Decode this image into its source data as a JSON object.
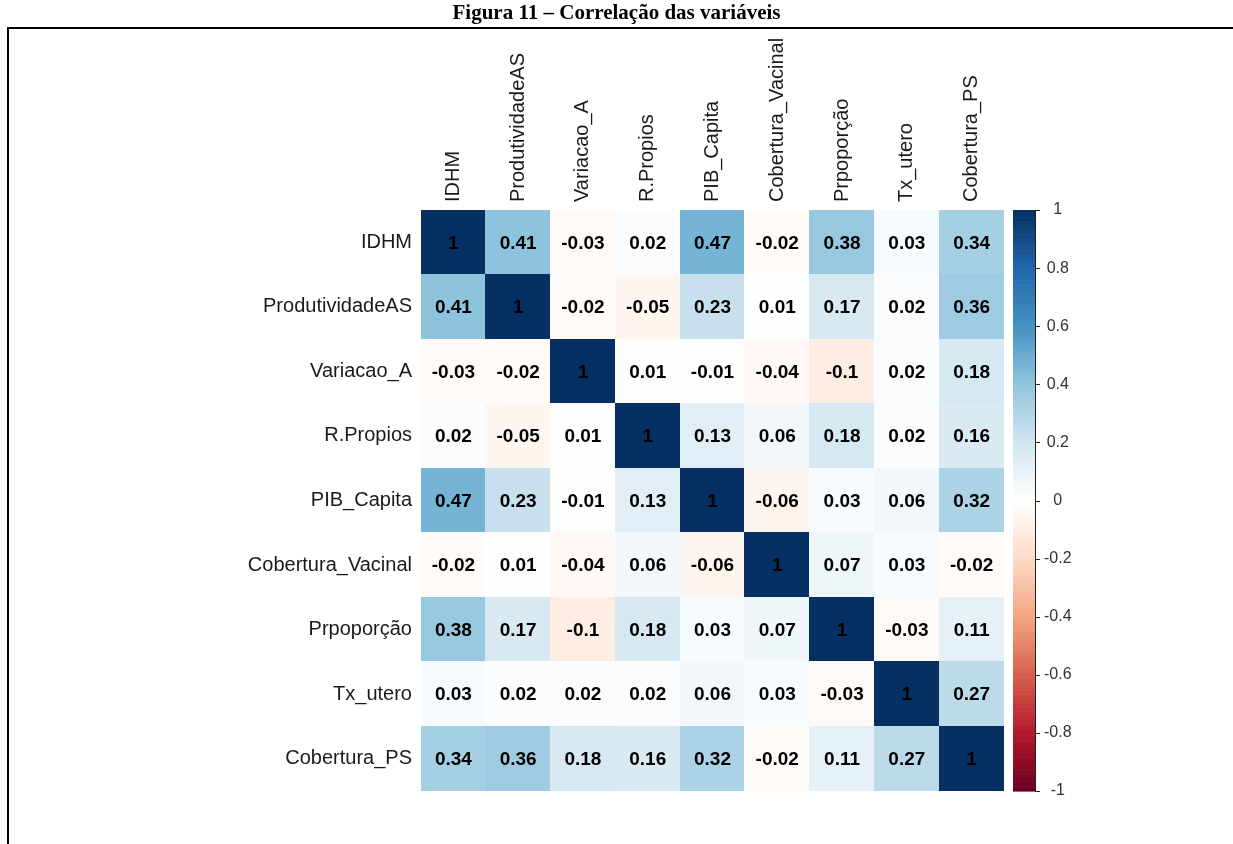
{
  "chart_data": {
    "type": "heatmap",
    "title": "Figura 11 – Correlação das variáveis",
    "categories": [
      "IDHM",
      "ProdutividadeAS",
      "Variacao_A",
      "R.Propios",
      "PIB_Capita",
      "Cobertura_Vacinal",
      "Prpoporção",
      "Tx_utero",
      "Cobertura_PS"
    ],
    "y_categories": [
      "IDHM",
      "ProdutividadeAS",
      "Variacao_A",
      "R.Propios",
      "PIB_Capita",
      "Cobertura_Vacinal",
      "Prpoporção",
      "Tx_utero",
      "Cobertura_PS"
    ],
    "cells": [
      [
        1,
        0.41,
        -0.03,
        0.02,
        0.47,
        -0.02,
        0.38,
        0.03,
        0.34
      ],
      [
        0.41,
        1,
        -0.02,
        -0.05,
        0.23,
        0.01,
        0.17,
        0.02,
        0.36
      ],
      [
        -0.03,
        -0.02,
        1,
        0.01,
        -0.01,
        -0.04,
        -0.1,
        0.02,
        0.18
      ],
      [
        0.02,
        -0.05,
        0.01,
        1,
        0.13,
        0.06,
        0.18,
        0.02,
        0.16
      ],
      [
        0.47,
        0.23,
        -0.01,
        0.13,
        1,
        -0.06,
        0.03,
        0.06,
        0.32
      ],
      [
        -0.02,
        0.01,
        -0.04,
        0.06,
        -0.06,
        1,
        0.07,
        0.03,
        -0.02
      ],
      [
        0.38,
        0.17,
        -0.1,
        0.18,
        0.03,
        0.07,
        1,
        -0.03,
        0.11
      ],
      [
        0.03,
        0.02,
        0.02,
        0.02,
        0.06,
        0.03,
        -0.03,
        1,
        0.27
      ],
      [
        0.34,
        0.36,
        0.18,
        0.16,
        0.32,
        -0.02,
        0.11,
        0.27,
        1
      ]
    ],
    "clim": [
      -1,
      1
    ],
    "cticks": [
      -1,
      -0.8,
      -0.6,
      -0.4,
      -0.2,
      0,
      0.2,
      0.4,
      0.6,
      0.8,
      1
    ],
    "data_labels": true
  }
}
